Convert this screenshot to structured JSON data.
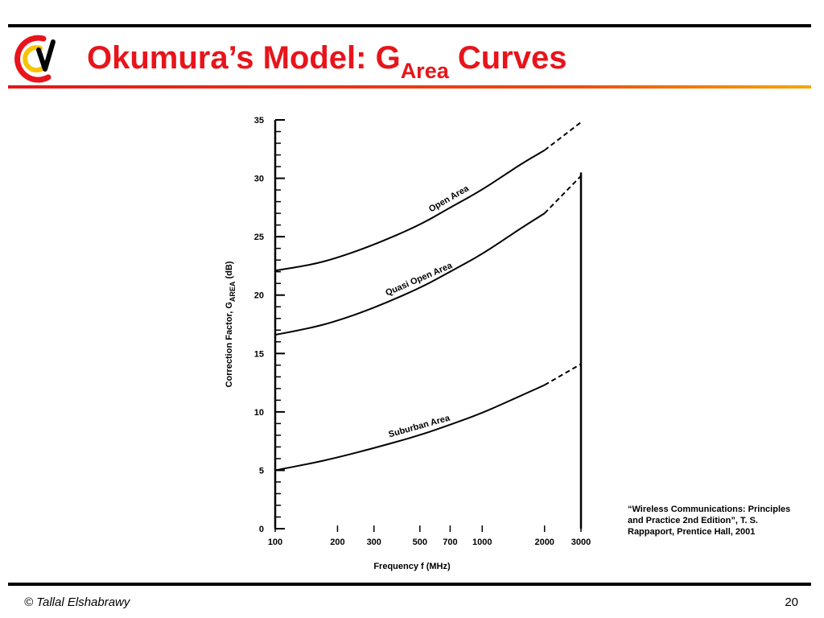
{
  "slide": {
    "title_main": "Okumura’s Model: G",
    "title_subscript": "Area",
    "title_end": " Curves",
    "citation": "“Wireless Communications: Principles and Practice 2nd Edition”, T. S. Rappaport, Prentice Hall, 2001",
    "footer_left": "© Tallal Elshabrawy",
    "page_number": "20",
    "colors": {
      "title": "#e8141b",
      "rules": "#000000",
      "accent_start": "#e8141b",
      "accent_end": "#f7a700"
    }
  },
  "chart_data": {
    "type": "line",
    "xlabel": "Frequency  f  (MHz)",
    "ylabel_prefix": "Correction  Factor,  G",
    "ylabel_subscript": "AREA",
    "ylabel_suffix": "  (dB)",
    "x_scale": "log",
    "xlim": [
      100,
      3000
    ],
    "ylim": [
      0,
      35
    ],
    "xticks": [
      100,
      200,
      300,
      500,
      700,
      1000,
      2000,
      3000
    ],
    "yticks": [
      0,
      5,
      10,
      15,
      20,
      25,
      30,
      35
    ],
    "grid": false,
    "series": [
      {
        "name": "Open Area",
        "x": [
          100,
          150,
          200,
          300,
          500,
          700,
          1000,
          1500,
          2000
        ],
        "y": [
          22.1,
          22.6,
          23.2,
          24.3,
          26.0,
          27.5,
          29.0,
          31.1,
          32.4
        ],
        "dashed_x": [
          2000,
          3000
        ],
        "dashed_y": [
          32.4,
          34.8
        ]
      },
      {
        "name": "Quasi Open Area",
        "x": [
          100,
          150,
          200,
          300,
          500,
          700,
          1000,
          1500,
          2000
        ],
        "y": [
          16.6,
          17.2,
          17.8,
          18.9,
          20.6,
          22.0,
          23.5,
          25.6,
          27.0
        ],
        "dashed_x": [
          2000,
          3000
        ],
        "dashed_y": [
          27.0,
          30.2
        ]
      },
      {
        "name": "Suburban Area",
        "x": [
          100,
          150,
          200,
          300,
          500,
          700,
          1000,
          1500,
          2000
        ],
        "y": [
          5.0,
          5.6,
          6.1,
          6.9,
          8.0,
          8.9,
          9.9,
          11.3,
          12.3
        ],
        "dashed_x": [
          2000,
          3000
        ],
        "dashed_y": [
          12.3,
          14.1
        ]
      }
    ]
  }
}
